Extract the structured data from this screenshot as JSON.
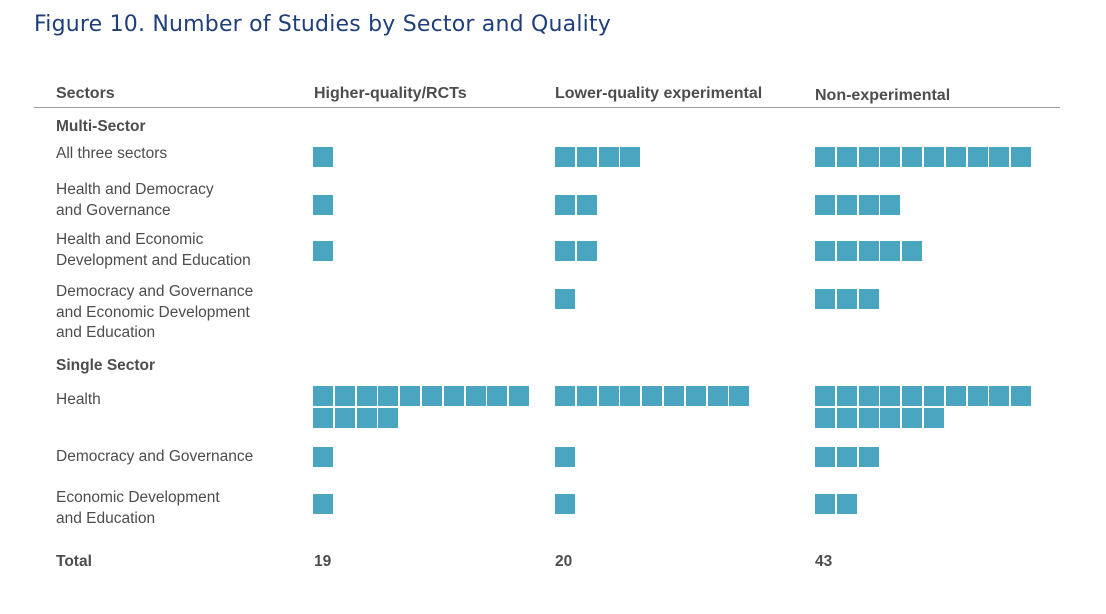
{
  "title": "Figure 10. Number of Studies by Sector and Quality",
  "chart_data": {
    "type": "table",
    "title": "Figure 10. Number of Studies by Sector and Quality",
    "row_header": "Sectors",
    "columns": [
      "Higher-quality/RCTs",
      "Lower-quality experimental",
      "Non-experimental"
    ],
    "groups": [
      {
        "name": "Multi-Sector",
        "rows": [
          {
            "label": "All three sectors",
            "values": [
              1,
              4,
              10
            ]
          },
          {
            "label": "Health and Democracy\nand Governance",
            "values": [
              1,
              2,
              4
            ]
          },
          {
            "label": "Health and Economic\nDevelopment and Education",
            "values": [
              1,
              2,
              5
            ]
          },
          {
            "label": "Democracy and Governance\nand Economic Development\nand Education",
            "values": [
              0,
              1,
              3
            ]
          }
        ]
      },
      {
        "name": "Single Sector",
        "rows": [
          {
            "label": "Health",
            "values": [
              14,
              9,
              16
            ]
          },
          {
            "label": "Democracy and Governance",
            "values": [
              1,
              1,
              3
            ]
          },
          {
            "label": "Economic Development\nand Education",
            "values": [
              1,
              1,
              2
            ]
          }
        ]
      }
    ],
    "total_label": "Total",
    "totals": [
      19,
      20,
      43
    ],
    "mark_color": "#4aa6c0",
    "units_per_row": 10
  }
}
